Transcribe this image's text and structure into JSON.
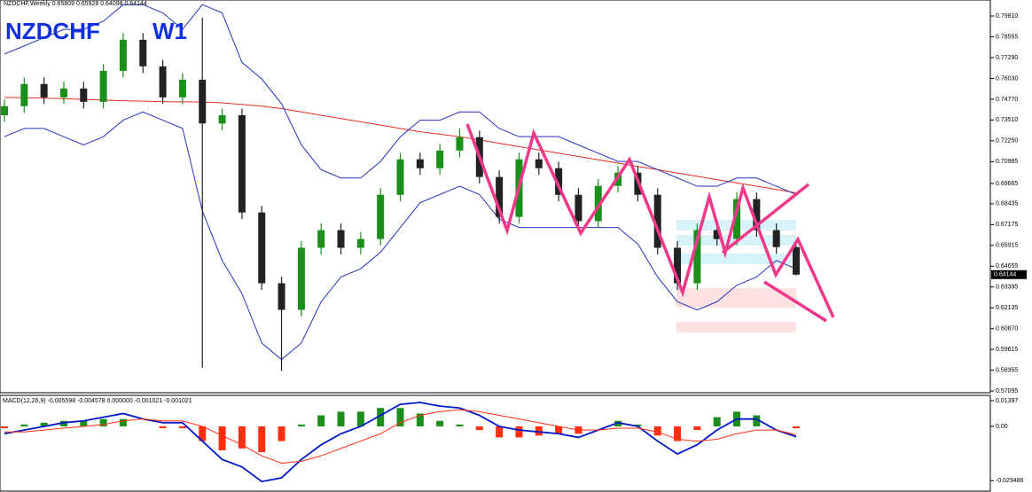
{
  "chart_data": [
    {
      "type": "candlestick",
      "title": "NZDCHF,Weekly  0.65809 0.65928 0.64098 0.64144",
      "annotations": [
        "NZDCHF",
        "W1"
      ],
      "open": [
        0.738,
        0.7435,
        0.7569,
        0.7488,
        0.7542,
        0.7461,
        0.7649,
        0.7837,
        0.7676,
        0.7488,
        0.7595,
        0.733,
        0.738,
        0.6791,
        0.6362,
        0.6201,
        0.6577,
        0.6684,
        0.6577,
        0.663,
        0.6898,
        0.7113,
        0.7059,
        0.7166,
        0.7247,
        0.7006,
        0.6764,
        0.7113,
        0.7059,
        0.6898,
        0.6738,
        0.6952,
        0.7032,
        0.6898,
        0.6577,
        0.6362,
        0.6684,
        0.663,
        0.6872,
        0.6684,
        0.65809
      ],
      "high": [
        0.7475,
        0.7609,
        0.7609,
        0.7582,
        0.7582,
        0.7689,
        0.7877,
        0.7877,
        0.7716,
        0.7635,
        0.7971,
        0.742,
        0.742,
        0.6831,
        0.6402,
        0.6617,
        0.6724,
        0.6724,
        0.667,
        0.6938,
        0.7153,
        0.7153,
        0.7206,
        0.73,
        0.7287,
        0.7046,
        0.7153,
        0.7153,
        0.7099,
        0.6938,
        0.6992,
        0.7072,
        0.7072,
        0.6938,
        0.6617,
        0.6724,
        0.6724,
        0.6912,
        0.6912,
        0.6724,
        0.65928
      ],
      "low": [
        0.734,
        0.7395,
        0.7448,
        0.7448,
        0.7421,
        0.7421,
        0.7609,
        0.7636,
        0.7448,
        0.7448,
        0.585,
        0.729,
        0.6751,
        0.6322,
        0.583,
        0.6161,
        0.6537,
        0.6537,
        0.6537,
        0.659,
        0.6858,
        0.7019,
        0.7019,
        0.7126,
        0.6966,
        0.6724,
        0.6724,
        0.7019,
        0.6858,
        0.6698,
        0.6698,
        0.6912,
        0.6858,
        0.6537,
        0.6322,
        0.6322,
        0.659,
        0.659,
        0.6644,
        0.6541,
        0.64098
      ],
      "close": [
        0.7435,
        0.7569,
        0.7488,
        0.7542,
        0.7461,
        0.7649,
        0.7837,
        0.7676,
        0.7488,
        0.7595,
        0.733,
        0.738,
        0.6791,
        0.6362,
        0.6201,
        0.6577,
        0.6684,
        0.6577,
        0.663,
        0.6898,
        0.7113,
        0.7059,
        0.7166,
        0.7247,
        0.7006,
        0.6764,
        0.7113,
        0.7059,
        0.6898,
        0.6738,
        0.6952,
        0.7032,
        0.6898,
        0.6577,
        0.6362,
        0.6684,
        0.663,
        0.6872,
        0.6684,
        0.6581,
        0.64144
      ],
      "up_color": "#1a8f1a",
      "down_color": "#222222",
      "lines": [
        {
          "color": "#e0301e",
          "values": [
            0.7488,
            0.7486,
            0.7484,
            0.748,
            0.7476,
            0.7472,
            0.7468,
            0.7465,
            0.7462,
            0.7461,
            0.746,
            0.7455,
            0.7445,
            0.7435,
            0.742,
            0.74,
            0.738,
            0.736,
            0.734,
            0.732,
            0.73,
            0.728,
            0.7265,
            0.725,
            0.723,
            0.721,
            0.719,
            0.717,
            0.715,
            0.713,
            0.711,
            0.709,
            0.707,
            0.705,
            0.703,
            0.701,
            0.699,
            0.697,
            0.695,
            0.693,
            0.691
          ]
        },
        {
          "color": "#2233bb",
          "values": [
            0.775,
            0.78,
            0.785,
            0.79,
            0.79,
            0.795,
            0.805,
            0.805,
            0.8,
            0.79,
            0.805,
            0.8,
            0.77,
            0.76,
            0.745,
            0.72,
            0.705,
            0.7,
            0.7,
            0.71,
            0.725,
            0.735,
            0.735,
            0.74,
            0.74,
            0.73,
            0.725,
            0.725,
            0.725,
            0.72,
            0.715,
            0.71,
            0.71,
            0.705,
            0.7,
            0.695,
            0.695,
            0.7,
            0.7,
            0.695,
            0.69
          ]
        },
        {
          "color": "#2233bb",
          "values": [
            0.725,
            0.73,
            0.73,
            0.725,
            0.72,
            0.725,
            0.735,
            0.74,
            0.735,
            0.73,
            0.68,
            0.65,
            0.63,
            0.6,
            0.59,
            0.6,
            0.625,
            0.64,
            0.645,
            0.655,
            0.67,
            0.685,
            0.69,
            0.695,
            0.69,
            0.675,
            0.67,
            0.67,
            0.67,
            0.67,
            0.67,
            0.67,
            0.66,
            0.64,
            0.625,
            0.62,
            0.625,
            0.635,
            0.64,
            0.65,
            0.645
          ]
        }
      ],
      "last_price": 0.64144,
      "ylim": [
        0.5699,
        0.8078
      ],
      "yticks": [
        {
          "value": 0.7981,
          "label": "0.79810"
        },
        0.78555,
        {
          "value": 0.7729,
          "label": "0.77290"
        },
        {
          "value": 0.7603,
          "label": "0.76030"
        },
        {
          "value": 0.7477,
          "label": "0.74770"
        },
        {
          "value": 0.7351,
          "label": "0.73510"
        },
        {
          "value": 0.7225,
          "label": "0.72250"
        },
        0.70985,
        0.69665,
        0.68435,
        0.67175,
        0.65915,
        0.64655,
        0.63395,
        0.62135,
        {
          "value": 0.6087,
          "label": "0.60870"
        },
        0.59615,
        0.58355,
        0.57095
      ]
    },
    {
      "type": "macd",
      "title": "MACD(12,26,9) -0.005598 -0.004578 0.000000 -0.001021 -0.001021",
      "histogram": [
        -0.001,
        0.001,
        0.002,
        0.003,
        0.003,
        0.004,
        0.004,
        0.0,
        -0.001,
        -0.001,
        -0.008,
        -0.013,
        -0.012,
        -0.014,
        -0.008,
        0.001,
        0.006,
        0.008,
        0.008,
        0.01,
        0.01,
        0.007,
        0.003,
        0.001,
        -0.002,
        -0.006,
        -0.006,
        -0.005,
        -0.004,
        -0.004,
        0.0,
        0.003,
        0.001,
        -0.005,
        -0.008,
        -0.002,
        0.005,
        0.008,
        0.006,
        0.0,
        -0.001021
      ],
      "up_color": "#1a8f1a",
      "down_color": "#ff3010",
      "series": [
        {
          "color": "#0018c8",
          "values": [
            -0.004,
            -0.002,
            0.0,
            0.002,
            0.003,
            0.005,
            0.007,
            0.004,
            0.002,
            0.002,
            -0.008,
            -0.018,
            -0.022,
            -0.03,
            -0.028,
            -0.018,
            -0.01,
            -0.004,
            0.0,
            0.006,
            0.012,
            0.013,
            0.011,
            0.01,
            0.006,
            0.0,
            -0.002,
            -0.003,
            -0.004,
            -0.006,
            -0.002,
            0.002,
            0.0,
            -0.008,
            -0.015,
            -0.01,
            -0.002,
            0.004,
            0.004,
            -0.002,
            -0.005598
          ]
        },
        {
          "color": "#ff3010",
          "values": [
            -0.003,
            -0.003,
            -0.002,
            -0.001,
            0.0,
            0.001,
            0.003,
            0.004,
            0.003,
            0.003,
            0.0,
            -0.005,
            -0.01,
            -0.016,
            -0.02,
            -0.019,
            -0.016,
            -0.012,
            -0.008,
            -0.004,
            0.002,
            0.006,
            0.008,
            0.009,
            0.008,
            0.006,
            0.004,
            0.002,
            0.0,
            -0.002,
            -0.002,
            -0.001,
            -0.001,
            -0.003,
            -0.007,
            -0.008,
            -0.007,
            -0.004,
            -0.002,
            -0.002,
            -0.004578
          ]
        }
      ],
      "ylim": [
        -0.0352,
        0.01686
      ],
      "yticks": [
        0.01397,
        {
          "value": 0,
          "label": "0.00"
        },
        -0.029486
      ]
    }
  ]
}
